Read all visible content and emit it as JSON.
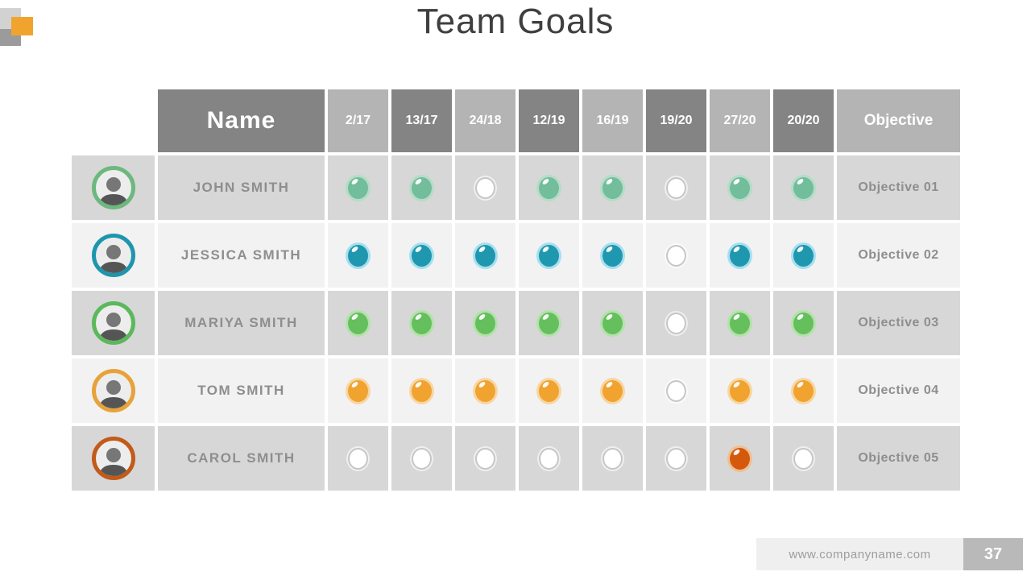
{
  "slide": {
    "title": "Team Goals",
    "footer_url": "www.companyname.com",
    "page_number": "37"
  },
  "table": {
    "name_header": "Name",
    "objective_header": "Objective",
    "date_headers": [
      "2/17",
      "13/17",
      "24/18",
      "12/19",
      "16/19",
      "19/20",
      "27/20",
      "20/20"
    ],
    "rows": [
      {
        "name": "JOHN SMITH",
        "objective": "Objective 01",
        "ring_color": "#6cb87e",
        "dot_color": "#72bd9b",
        "halo_color": "#b5dcc7",
        "dots": [
          1,
          1,
          0,
          1,
          1,
          0,
          1,
          1
        ]
      },
      {
        "name": "JESSICA SMITH",
        "objective": "Objective 02",
        "ring_color": "#1d96ad",
        "dot_color": "#1f97ae",
        "halo_color": "#a5dff0",
        "dots": [
          1,
          1,
          1,
          1,
          1,
          0,
          1,
          1
        ]
      },
      {
        "name": "MARIYA SMITH",
        "objective": "Objective 03",
        "ring_color": "#5cb85c",
        "dot_color": "#65bf5d",
        "halo_color": "#b2e2aa",
        "dots": [
          1,
          1,
          1,
          1,
          1,
          0,
          1,
          1
        ]
      },
      {
        "name": "TOM SMITH",
        "objective": "Objective 04",
        "ring_color": "#e7a23a",
        "dot_color": "#f0a32f",
        "halo_color": "#f7d6a3",
        "dots": [
          1,
          1,
          1,
          1,
          1,
          0,
          1,
          1
        ]
      },
      {
        "name": "CAROL SMITH",
        "objective": "Objective 05",
        "ring_color": "#c25a18",
        "dot_color": "#d4590e",
        "halo_color": "#efc092",
        "dots": [
          0,
          0,
          0,
          0,
          0,
          0,
          1,
          0
        ]
      }
    ]
  },
  "colors": {
    "header_dark": "#848484",
    "header_light": "#b4b4b4",
    "row_odd": "#d7d7d7",
    "row_even": "#f2f2f2",
    "accent_orange": "#f0a42e",
    "empty_dot_border": "#c6c6c6",
    "title_text": "#3f3f3f",
    "body_text": "#8e8e8e"
  }
}
